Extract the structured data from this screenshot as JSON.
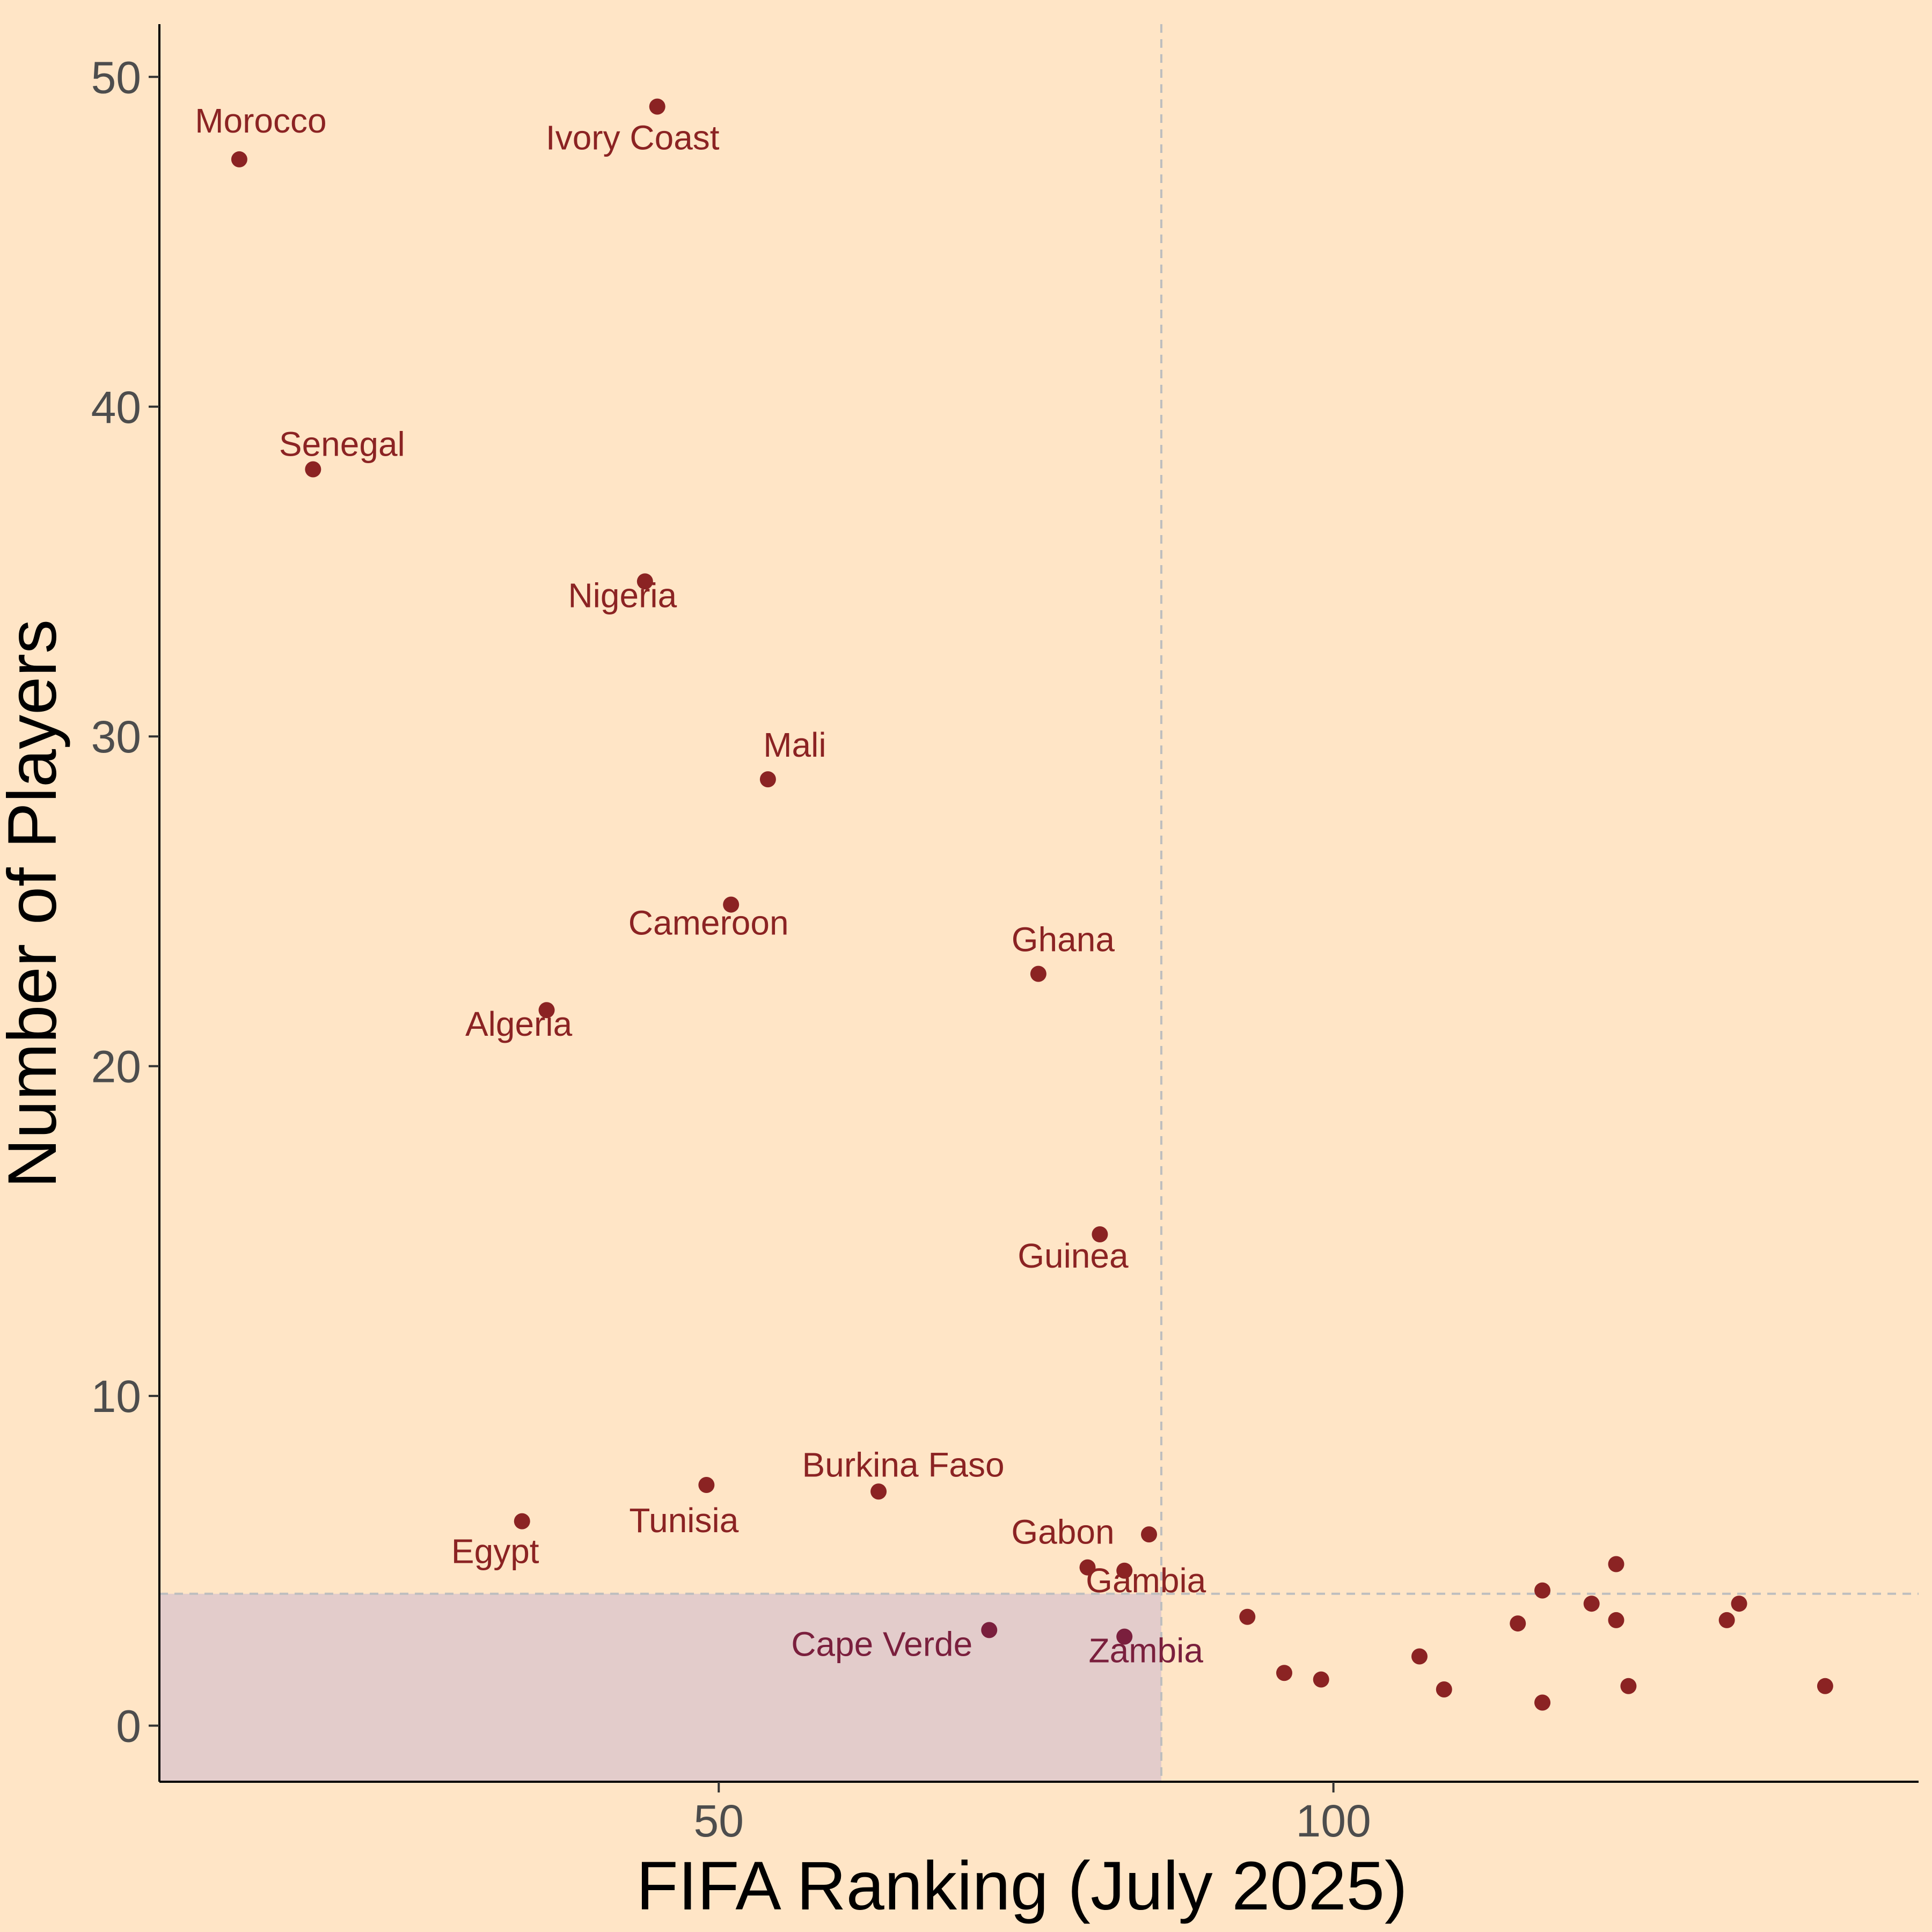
{
  "chart_data": {
    "type": "scatter",
    "title": "",
    "xlabel": "FIFA Ranking (July 2025)",
    "ylabel": "Number of Players",
    "xlim": [
      4.5,
      147.6
    ],
    "ylim": [
      -1.7,
      51.6
    ],
    "x_ticks": [
      50,
      100
    ],
    "y_ticks": [
      0,
      10,
      20,
      30,
      40,
      50
    ],
    "grid": false,
    "legend": "none",
    "reference_lines": {
      "x": 86,
      "y": 4
    },
    "highlight_region": {
      "x": [
        4.5,
        86
      ],
      "y": [
        -1.7,
        4
      ]
    },
    "colors": {
      "background": "#FFE5C6",
      "point": "#8B2323",
      "point_in_region": "#7A1F3D",
      "label": "#8B2323",
      "label_in_region": "#7A1F3D",
      "region_fill": "#E3CCCB",
      "reference_line": "#BEBEBE",
      "axis": "#000000",
      "tick_text": "#4D4D4D"
    },
    "points": [
      {
        "x": 11,
        "y": 47.5,
        "label": "Morocco"
      },
      {
        "x": 45,
        "y": 49.1,
        "label": "Ivory Coast"
      },
      {
        "x": 17,
        "y": 38.1,
        "label": "Senegal"
      },
      {
        "x": 44,
        "y": 34.7,
        "label": "Nigeria"
      },
      {
        "x": 54,
        "y": 28.7,
        "label": "Mali"
      },
      {
        "x": 51,
        "y": 24.9,
        "label": "Cameroon"
      },
      {
        "x": 76,
        "y": 22.8,
        "label": "Ghana"
      },
      {
        "x": 36,
        "y": 21.7,
        "label": "Algeria"
      },
      {
        "x": 81,
        "y": 14.9,
        "label": "Guinea"
      },
      {
        "x": 49,
        "y": 7.3,
        "label": "Tunisia"
      },
      {
        "x": 63,
        "y": 7.1,
        "label": "Burkina Faso"
      },
      {
        "x": 34,
        "y": 6.2,
        "label": "Egypt"
      },
      {
        "x": 85,
        "y": 5.8,
        "label": ""
      },
      {
        "x": 80,
        "y": 4.8,
        "label": "Gabon"
      },
      {
        "x": 83,
        "y": 4.7,
        "label": "Gambia"
      },
      {
        "x": 72,
        "y": 2.9,
        "label": "Cape Verde"
      },
      {
        "x": 83,
        "y": 2.7,
        "label": "Zambia"
      },
      {
        "x": 93,
        "y": 3.3,
        "label": ""
      },
      {
        "x": 96,
        "y": 1.6,
        "label": ""
      },
      {
        "x": 99,
        "y": 1.4,
        "label": ""
      },
      {
        "x": 107,
        "y": 2.1,
        "label": ""
      },
      {
        "x": 109,
        "y": 1.1,
        "label": ""
      },
      {
        "x": 115,
        "y": 3.1,
        "label": ""
      },
      {
        "x": 117,
        "y": 4.1,
        "label": ""
      },
      {
        "x": 117,
        "y": 0.7,
        "label": ""
      },
      {
        "x": 121,
        "y": 3.7,
        "label": ""
      },
      {
        "x": 123,
        "y": 4.9,
        "label": ""
      },
      {
        "x": 123,
        "y": 3.2,
        "label": ""
      },
      {
        "x": 124,
        "y": 1.2,
        "label": ""
      },
      {
        "x": 132,
        "y": 3.2,
        "label": ""
      },
      {
        "x": 133,
        "y": 3.7,
        "label": ""
      },
      {
        "x": 140,
        "y": 1.2,
        "label": ""
      }
    ]
  }
}
